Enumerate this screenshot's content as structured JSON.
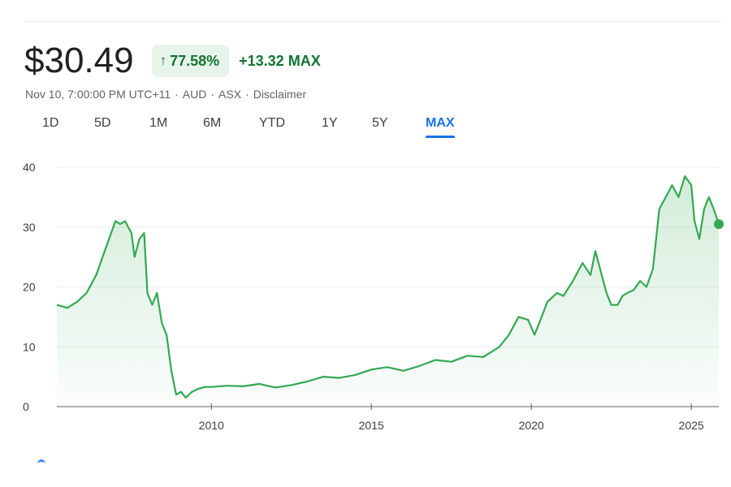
{
  "header": {
    "price": "$30.49",
    "change_pct": "77.58%",
    "change_abs": "+13.32",
    "range_label": "MAX",
    "arrow": "↑"
  },
  "meta": {
    "timestamp": "Nov 10, 7:00:00 PM UTC+11",
    "currency": "AUD",
    "exchange": "ASX",
    "disclaimer": "Disclaimer",
    "separator": "·"
  },
  "tabs": [
    {
      "label": "1D"
    },
    {
      "label": "5D"
    },
    {
      "label": "1M"
    },
    {
      "label": "6M"
    },
    {
      "label": "YTD"
    },
    {
      "label": "1Y"
    },
    {
      "label": "5Y"
    },
    {
      "label": "MAX",
      "active": true
    }
  ],
  "colors": {
    "line": "#34a853",
    "positive_text": "#137333",
    "positive_bg": "#e6f4ea",
    "active_tab": "#1a73e8"
  },
  "chart_data": {
    "type": "area",
    "title": "",
    "xlabel": "",
    "ylabel": "",
    "xlim": [
      2005.17,
      2025.86
    ],
    "ylim": [
      0,
      40
    ],
    "yticks": [
      0,
      10,
      20,
      30,
      40
    ],
    "xticks": [
      2010,
      2015,
      2020,
      2025
    ],
    "grid": "horizontal",
    "series": [
      {
        "x": [
          2005.17,
          2005.5,
          2005.8,
          2006.1,
          2006.4,
          2006.6,
          2006.8,
          2007.0,
          2007.15,
          2007.3,
          2007.5,
          2007.6,
          2007.75,
          2007.9,
          2008.0,
          2008.15,
          2008.3,
          2008.45,
          2008.6,
          2008.75,
          2008.9,
          2009.05,
          2009.2,
          2009.4,
          2009.6,
          2009.8,
          2010.0,
          2010.5,
          2011.0,
          2011.5,
          2012.0,
          2012.5,
          2013.0,
          2013.5,
          2014.0,
          2014.5,
          2015.0,
          2015.5,
          2016.0,
          2016.5,
          2017.0,
          2017.5,
          2018.0,
          2018.5,
          2019.0,
          2019.3,
          2019.6,
          2019.9,
          2020.1,
          2020.25,
          2020.5,
          2020.8,
          2021.0,
          2021.3,
          2021.6,
          2021.85,
          2022.0,
          2022.2,
          2022.35,
          2022.5,
          2022.7,
          2022.85,
          2023.0,
          2023.2,
          2023.4,
          2023.6,
          2023.8,
          2024.0,
          2024.2,
          2024.4,
          2024.6,
          2024.8,
          2025.0,
          2025.1,
          2025.25,
          2025.4,
          2025.55,
          2025.7,
          2025.86
        ],
        "y": [
          17,
          16.5,
          17.5,
          19,
          22,
          25,
          28,
          31,
          30.5,
          31,
          29,
          25,
          28,
          29,
          19,
          17,
          19,
          14,
          12,
          6,
          2,
          2.5,
          1.5,
          2.5,
          3,
          3.3,
          3.3,
          3.5,
          3.4,
          3.8,
          3.2,
          3.6,
          4.2,
          5,
          4.8,
          5.3,
          6.2,
          6.6,
          6,
          6.8,
          7.8,
          7.5,
          8.5,
          8.3,
          10,
          12,
          15,
          14.5,
          12,
          14,
          17.5,
          19,
          18.5,
          21,
          24,
          22,
          26,
          22,
          19,
          17,
          17,
          18.5,
          19,
          19.5,
          21,
          20,
          23,
          33,
          35,
          37,
          35,
          38.5,
          37,
          31,
          28,
          33,
          35,
          33,
          30.49
        ]
      }
    ],
    "end_marker": {
      "x": 2025.86,
      "y": 30.49
    }
  }
}
